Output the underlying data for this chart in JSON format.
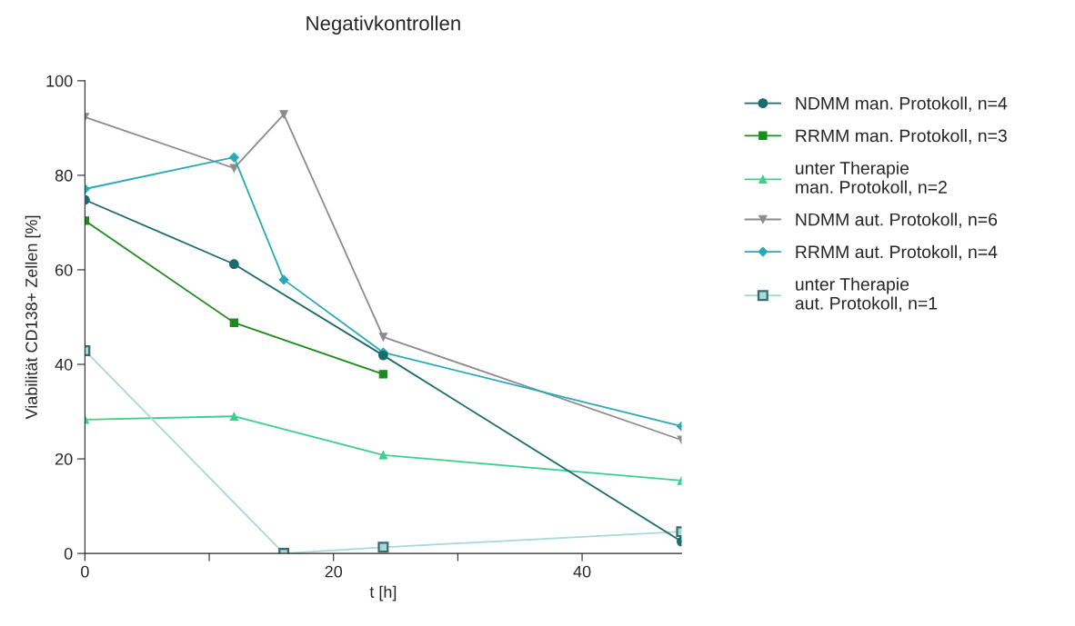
{
  "chart_data": {
    "type": "line",
    "title": "Negativkontrollen",
    "xlabel": "t [h]",
    "ylabel": "Viabilität CD138+ Zellen [%]",
    "xlim": [
      0,
      48
    ],
    "xticks": [
      0,
      {
        "value": 10,
        "label": null
      },
      20,
      {
        "value": 30,
        "label": null
      },
      40
    ],
    "ylim": [
      0,
      100
    ],
    "yticks": [
      0,
      20,
      40,
      60,
      80,
      100
    ],
    "grid": false,
    "legend": "right",
    "series": [
      {
        "name": "NDMM man. Protokoll, n=4",
        "color": "#1a6b6b",
        "marker": "circle",
        "x": [
          0,
          12,
          24,
          48
        ],
        "values": [
          74.8,
          61.2,
          41.9,
          2.5
        ]
      },
      {
        "name": "RRMM man. Protokoll, n=3",
        "color": "#1e8a1e",
        "marker": "square",
        "x": [
          0,
          12,
          24
        ],
        "values": [
          70.4,
          48.8,
          37.9
        ]
      },
      {
        "name": "unter Therapie\nman. Protokoll, n=2",
        "color": "#3ecf8e",
        "marker": "triangle",
        "x": [
          0,
          12,
          24,
          48
        ],
        "values": [
          28.3,
          29.0,
          20.8,
          15.4
        ]
      },
      {
        "name": "NDMM aut. Protokoll, n=6",
        "color": "#8c8c8c",
        "marker": "triangle_down",
        "x": [
          0,
          12,
          16,
          24,
          48
        ],
        "values": [
          92.3,
          81.5,
          92.9,
          45.8,
          24.0
        ]
      },
      {
        "name": "RRMM aut. Protokoll, n=4",
        "color": "#2aa8b8",
        "marker": "diamond",
        "x": [
          0,
          12,
          16,
          24,
          48
        ],
        "values": [
          77.1,
          83.8,
          57.9,
          42.5,
          26.9
        ]
      },
      {
        "name": "unter Therapie\naut. Protokoll, n=1",
        "color": "#a8d8d8",
        "marker": "square",
        "x": [
          0,
          16,
          24,
          48
        ],
        "values": [
          42.9,
          0,
          1.3,
          4.6
        ]
      }
    ]
  }
}
